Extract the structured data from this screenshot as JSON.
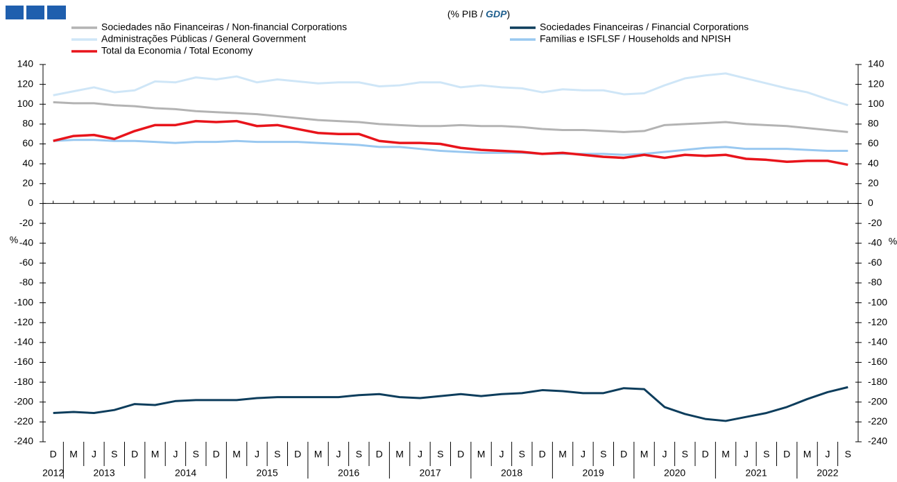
{
  "chart_data": {
    "type": "line",
    "subtitle": [
      "(% PIB / ",
      "GDP",
      ")"
    ],
    "ylabel": "%",
    "categories": [
      "D",
      "M",
      "J",
      "S",
      "D",
      "M",
      "J",
      "S",
      "D",
      "M",
      "J",
      "S",
      "D",
      "M",
      "J",
      "S",
      "D",
      "M",
      "J",
      "S",
      "D",
      "M",
      "J",
      "S",
      "D",
      "M",
      "J",
      "S",
      "D",
      "M",
      "J",
      "S",
      "D",
      "M",
      "J",
      "S",
      "D",
      "M",
      "J",
      "S"
    ],
    "years": [
      "2012",
      "2013",
      "2014",
      "2015",
      "2016",
      "2017",
      "2018",
      "2019",
      "2020",
      "2021",
      "2022"
    ],
    "ylim": [
      -240,
      140
    ],
    "yticks": [
      -240,
      -220,
      -200,
      -180,
      -160,
      -140,
      -120,
      -100,
      -80,
      -60,
      -40,
      -20,
      0,
      20,
      40,
      60,
      80,
      100,
      120,
      140
    ],
    "series": [
      {
        "name": "Sociedades não Financeiras / Non-financial Corporations",
        "color": "#b3b3b3",
        "values": [
          102,
          101,
          101,
          99,
          98,
          96,
          95,
          93,
          92,
          91,
          90,
          88,
          86,
          84,
          83,
          82,
          80,
          79,
          78,
          78,
          79,
          78,
          78,
          77,
          75,
          74,
          74,
          73,
          72,
          73,
          79,
          80,
          81,
          82,
          80,
          79,
          78,
          76,
          74,
          72
        ]
      },
      {
        "name": "Sociedades Financeiras / Financial Corporations",
        "color": "#0d3d5c",
        "values": [
          -211,
          -210,
          -211,
          -208,
          -202,
          -203,
          -199,
          -198,
          -198,
          -198,
          -196,
          -195,
          -195,
          -195,
          -195,
          -193,
          -192,
          -195,
          -196,
          -194,
          -192,
          -194,
          -192,
          -191,
          -188,
          -189,
          -191,
          -191,
          -186,
          -187,
          -205,
          -212,
          -217,
          -219,
          -215,
          -211,
          -205,
          -197,
          -190,
          -185
        ]
      },
      {
        "name": "Administrações Públicas / General Government",
        "color": "#cfe6f7",
        "values": [
          109,
          113,
          117,
          112,
          114,
          123,
          122,
          127,
          125,
          128,
          122,
          125,
          123,
          121,
          122,
          122,
          118,
          119,
          122,
          122,
          117,
          119,
          117,
          116,
          112,
          115,
          114,
          114,
          110,
          111,
          119,
          126,
          129,
          131,
          126,
          121,
          116,
          112,
          105,
          99
        ]
      },
      {
        "name": "Famílias e ISFLSF / Households and NPISH",
        "color": "#99c8f0",
        "values": [
          63,
          64,
          64,
          63,
          63,
          62,
          61,
          62,
          62,
          63,
          62,
          62,
          62,
          61,
          60,
          59,
          57,
          57,
          55,
          53,
          52,
          51,
          51,
          51,
          50,
          50,
          50,
          50,
          49,
          50,
          52,
          54,
          56,
          57,
          55,
          55,
          55,
          54,
          53,
          53
        ]
      },
      {
        "name": "Total da Economia / Total Economy",
        "color": "#e8141b",
        "values": [
          63,
          68,
          69,
          65,
          73,
          79,
          79,
          83,
          82,
          83,
          78,
          79,
          75,
          71,
          70,
          70,
          63,
          61,
          61,
          60,
          56,
          54,
          53,
          52,
          50,
          51,
          49,
          47,
          46,
          49,
          46,
          49,
          48,
          49,
          45,
          44,
          42,
          43,
          43,
          39
        ]
      }
    ]
  }
}
